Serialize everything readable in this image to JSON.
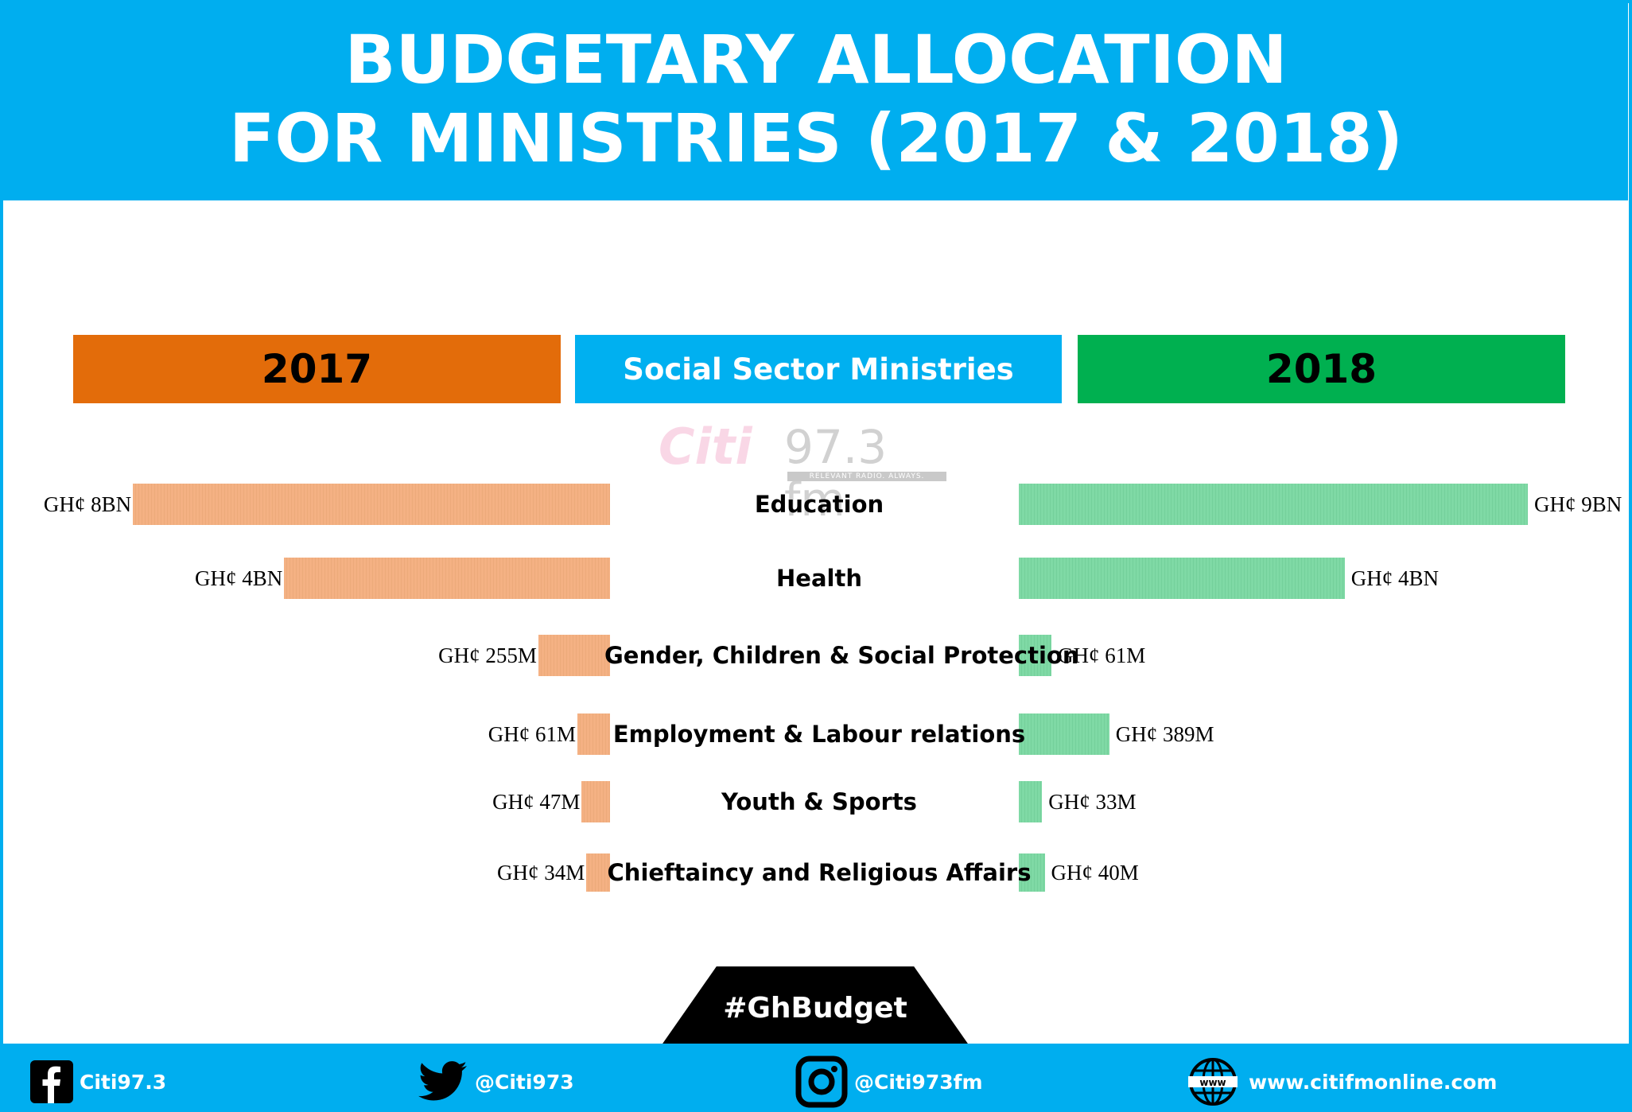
{
  "title": {
    "line1": "BUDGETARY ALLOCATION",
    "line2": "FOR MINISTRIES (2017 & 2018)"
  },
  "category_header": {
    "left": "2017",
    "middle": "Social Sector Ministries",
    "right": "2018"
  },
  "watermark": {
    "brand": "Citi",
    "frequency": "97.3 fm",
    "tagline": "RELEVANT RADIO. ALWAYS."
  },
  "colors": {
    "header": "#00aeef",
    "bar_2017": "#f4b183",
    "bar_2018": "#7fd9a5",
    "box_2017": "#e36c0a",
    "box_2018": "#00b050",
    "box_middle": "#00b0f0"
  },
  "chart_data": {
    "type": "bar",
    "orientation": "horizontal-butterfly",
    "categories": [
      "Education",
      "Health",
      "Gender, Children & Social Protection",
      "Employment & Labour relations",
      "Youth & Sports",
      "Chieftaincy and Religious Affairs"
    ],
    "series": [
      {
        "name": "2017",
        "values": [
          8000,
          4000,
          255,
          61,
          47,
          34
        ],
        "labels": [
          "GH¢ 8BN",
          "GH¢ 4BN",
          "GH¢ 255M",
          "GH¢ 61M",
          "GH¢ 47M",
          "GH¢ 34M"
        ]
      },
      {
        "name": "2018",
        "values": [
          9000,
          4000,
          61,
          389,
          33,
          40
        ],
        "labels": [
          "GH¢ 9BN",
          "GH¢ 4BN",
          "GH¢ 61M",
          "GH¢ 389M",
          "GH¢ 33M",
          "GH¢ 40M"
        ]
      }
    ]
  },
  "hashtag": "#GhBudget",
  "footer": {
    "facebook": "Citi97.3",
    "twitter": "@Citi973",
    "instagram": "@Citi973fm",
    "website": "www.citifmonline.com"
  }
}
